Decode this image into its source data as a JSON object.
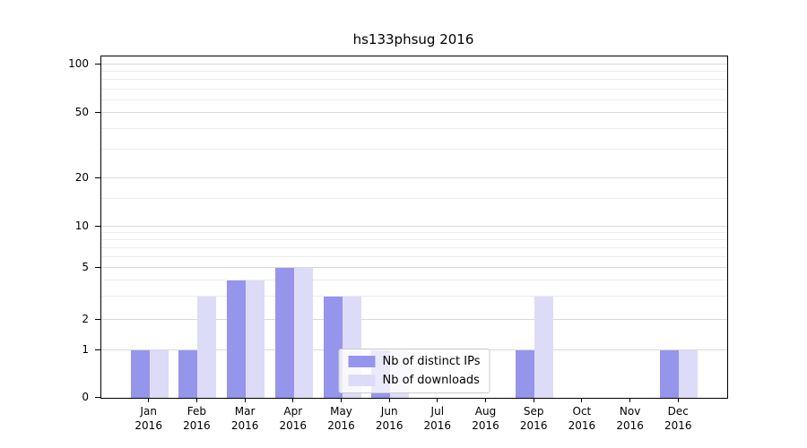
{
  "chart_data": {
    "type": "bar",
    "title": "hs133phsug 2016",
    "categories": [
      "Jan 2016",
      "Feb 2016",
      "Mar 2016",
      "Apr 2016",
      "May 2016",
      "Jun 2016",
      "Jul 2016",
      "Aug 2016",
      "Sep 2016",
      "Oct 2016",
      "Nov 2016",
      "Dec 2016"
    ],
    "series": [
      {
        "name": "Nb of distinct IPs",
        "color": "#9595ec",
        "values": [
          1,
          1,
          4,
          5,
          3,
          1,
          0,
          0,
          1,
          0,
          0,
          1
        ]
      },
      {
        "name": "Nb of downloads",
        "color": "#dcdcf8",
        "values": [
          1,
          3,
          4,
          5,
          3,
          1,
          0,
          0,
          3,
          0,
          0,
          1
        ]
      }
    ],
    "y_axis": {
      "scale": "symlog",
      "ticks": [
        0,
        1,
        2,
        5,
        10,
        20,
        50,
        100
      ],
      "minor_ticks": [
        3,
        4,
        6,
        7,
        8,
        9,
        15,
        30,
        40,
        60,
        70,
        80,
        90
      ],
      "ylim": [
        0,
        110
      ]
    },
    "xlabel": "",
    "ylabel": "",
    "grid": true,
    "legend_position": "lower center",
    "colors": {
      "background": "#ffffff",
      "major_grid": "#d9d9d9",
      "minor_grid": "#ededed",
      "spine": "#000000"
    }
  }
}
